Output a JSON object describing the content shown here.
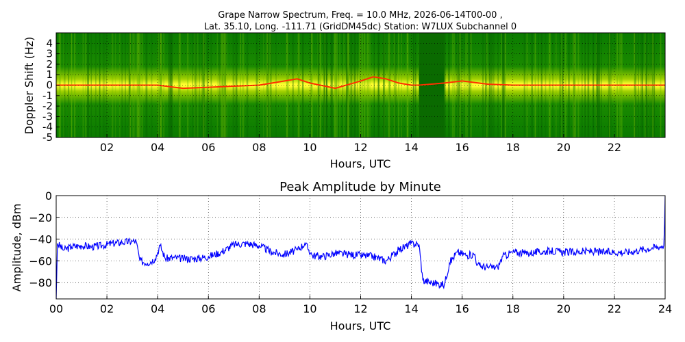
{
  "chart_data": [
    {
      "type": "heatmap",
      "title_line1": "Grape Narrow Spectrum, Freq. = 10.0 MHz, 2026-06-14T00-00 ,",
      "title_line2": "Lat.  35.10, Long. -111.71 (GridDM45dc) Station: W7LUX Subchannel 0",
      "xlabel": "Hours, UTC",
      "ylabel": "Doppler Shift (Hz)",
      "xlim": [
        0,
        24
      ],
      "ylim": [
        -5,
        5
      ],
      "x_ticks": [
        2,
        4,
        6,
        8,
        10,
        12,
        14,
        16,
        18,
        20,
        22
      ],
      "x_tick_labels": [
        "02",
        "04",
        "06",
        "08",
        "10",
        "12",
        "14",
        "16",
        "18",
        "20",
        "22"
      ],
      "y_ticks": [
        4,
        3,
        2,
        1,
        0,
        -1,
        -2,
        -3,
        -4,
        -5
      ],
      "y_tick_labels": [
        "4",
        "3",
        "2",
        "1",
        "0",
        "-1",
        "-2",
        "-3",
        "-4",
        "-5"
      ],
      "grid": true,
      "colors": {
        "background": "#0a7a00",
        "mid": "#a8d800",
        "high": "#ffff20",
        "peak": "#ff3000"
      },
      "doppler_trace": {
        "x": [
          0,
          1,
          2,
          3,
          4,
          5,
          6,
          7,
          8,
          9,
          9.5,
          10,
          11,
          12,
          12.5,
          13,
          13.5,
          14,
          14.3,
          15.3,
          16,
          17,
          18,
          20,
          22,
          24
        ],
        "y": [
          0,
          0,
          0,
          0,
          0,
          -0.3,
          -0.2,
          -0.1,
          0,
          0.4,
          0.6,
          0.2,
          -0.3,
          0.4,
          0.8,
          0.6,
          0.2,
          0,
          0,
          0.2,
          0.4,
          0.1,
          0,
          0,
          0,
          0
        ]
      },
      "signal_gaps": [
        [
          14.3,
          15.3
        ]
      ]
    },
    {
      "type": "line",
      "title": "Peak Amplitude by Minute",
      "xlabel": "Hours, UTC",
      "ylabel": "Amplitude, dBm",
      "xlim": [
        0,
        24
      ],
      "ylim": [
        -95,
        0
      ],
      "x_ticks": [
        0,
        2,
        4,
        6,
        8,
        10,
        12,
        14,
        16,
        18,
        20,
        22,
        24
      ],
      "x_tick_labels": [
        "00",
        "02",
        "04",
        "06",
        "08",
        "10",
        "12",
        "14",
        "16",
        "18",
        "20",
        "22",
        "24"
      ],
      "y_ticks": [
        0,
        -20,
        -40,
        -60,
        -80
      ],
      "y_tick_labels": [
        "0",
        "−20",
        "−40",
        "−60",
        "−80"
      ],
      "grid": true,
      "line_color": "#0000ff",
      "series": [
        {
          "x": [
            0,
            0.05,
            0.3,
            0.6,
            1.0,
            1.4,
            1.8,
            2.2,
            2.6,
            3.0,
            3.15,
            3.3,
            3.6,
            3.9,
            4.1,
            4.3,
            4.6,
            5.0,
            5.5,
            6.0,
            6.5,
            7.0,
            7.5,
            8.0,
            8.5,
            9.0,
            9.5,
            9.8,
            10.1,
            10.5,
            11.0,
            11.5,
            12.0,
            12.5,
            13.0,
            13.5,
            14.0,
            14.3,
            14.45,
            14.8,
            15.3,
            15.5,
            15.8,
            16.2,
            16.5,
            16.6,
            17.0,
            17.4,
            17.6,
            18.0,
            18.5,
            19.0,
            19.5,
            20.0,
            20.5,
            21.0,
            21.5,
            22.0,
            22.5,
            23.0,
            23.5,
            23.95,
            24.0
          ],
          "y": [
            -95,
            -44,
            -50,
            -47,
            -46,
            -47,
            -46,
            -44,
            -43,
            -42,
            -42,
            -60,
            -62,
            -58,
            -46,
            -58,
            -57,
            -58,
            -58,
            -56,
            -52,
            -45,
            -44,
            -46,
            -52,
            -54,
            -50,
            -44,
            -55,
            -56,
            -53,
            -54,
            -55,
            -56,
            -60,
            -50,
            -44,
            -45,
            -78,
            -80,
            -82,
            -62,
            -52,
            -55,
            -54,
            -64,
            -66,
            -66,
            -56,
            -52,
            -53,
            -52,
            -51,
            -52,
            -52,
            -51,
            -52,
            -52,
            -52,
            -50,
            -48,
            -46,
            0
          ]
        }
      ]
    }
  ]
}
